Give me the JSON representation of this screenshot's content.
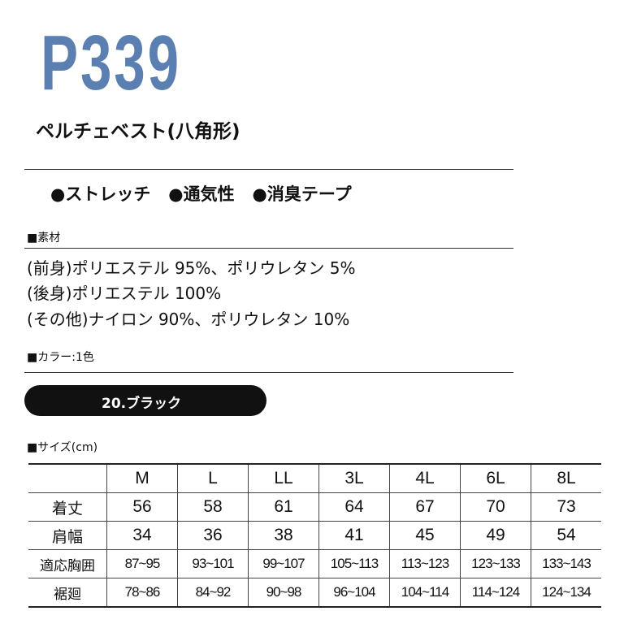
{
  "product": {
    "code": "P339",
    "name": "ペルチェベスト(八角形)",
    "accent_color": "#5a7fb0"
  },
  "features": [
    "●ストレッチ",
    "●通気性",
    "●消臭テープ"
  ],
  "material": {
    "label": "■素材",
    "lines": [
      "(前身)ポリエステル 95%、ポリウレタン 5%",
      "(後身)ポリエステル 100%",
      "(その他)ナイロン 90%、ポリウレタン 10%"
    ]
  },
  "color": {
    "label": "■カラー:1色",
    "options": [
      "20.ブラック"
    ]
  },
  "size": {
    "label": "■サイズ(cm)",
    "headers": [
      "",
      "M",
      "L",
      "LL",
      "3L",
      "4L",
      "6L",
      "8L"
    ],
    "rows": [
      [
        "着丈",
        "56",
        "58",
        "61",
        "64",
        "67",
        "70",
        "73"
      ],
      [
        "肩幅",
        "34",
        "36",
        "38",
        "41",
        "45",
        "49",
        "54"
      ],
      [
        "適応胸囲",
        "87~95",
        "93~101",
        "99~107",
        "105~113",
        "113~123",
        "123~133",
        "133~143"
      ],
      [
        "裾廻",
        "78~86",
        "84~92",
        "90~98",
        "96~104",
        "104~114",
        "114~124",
        "124~134"
      ]
    ]
  }
}
